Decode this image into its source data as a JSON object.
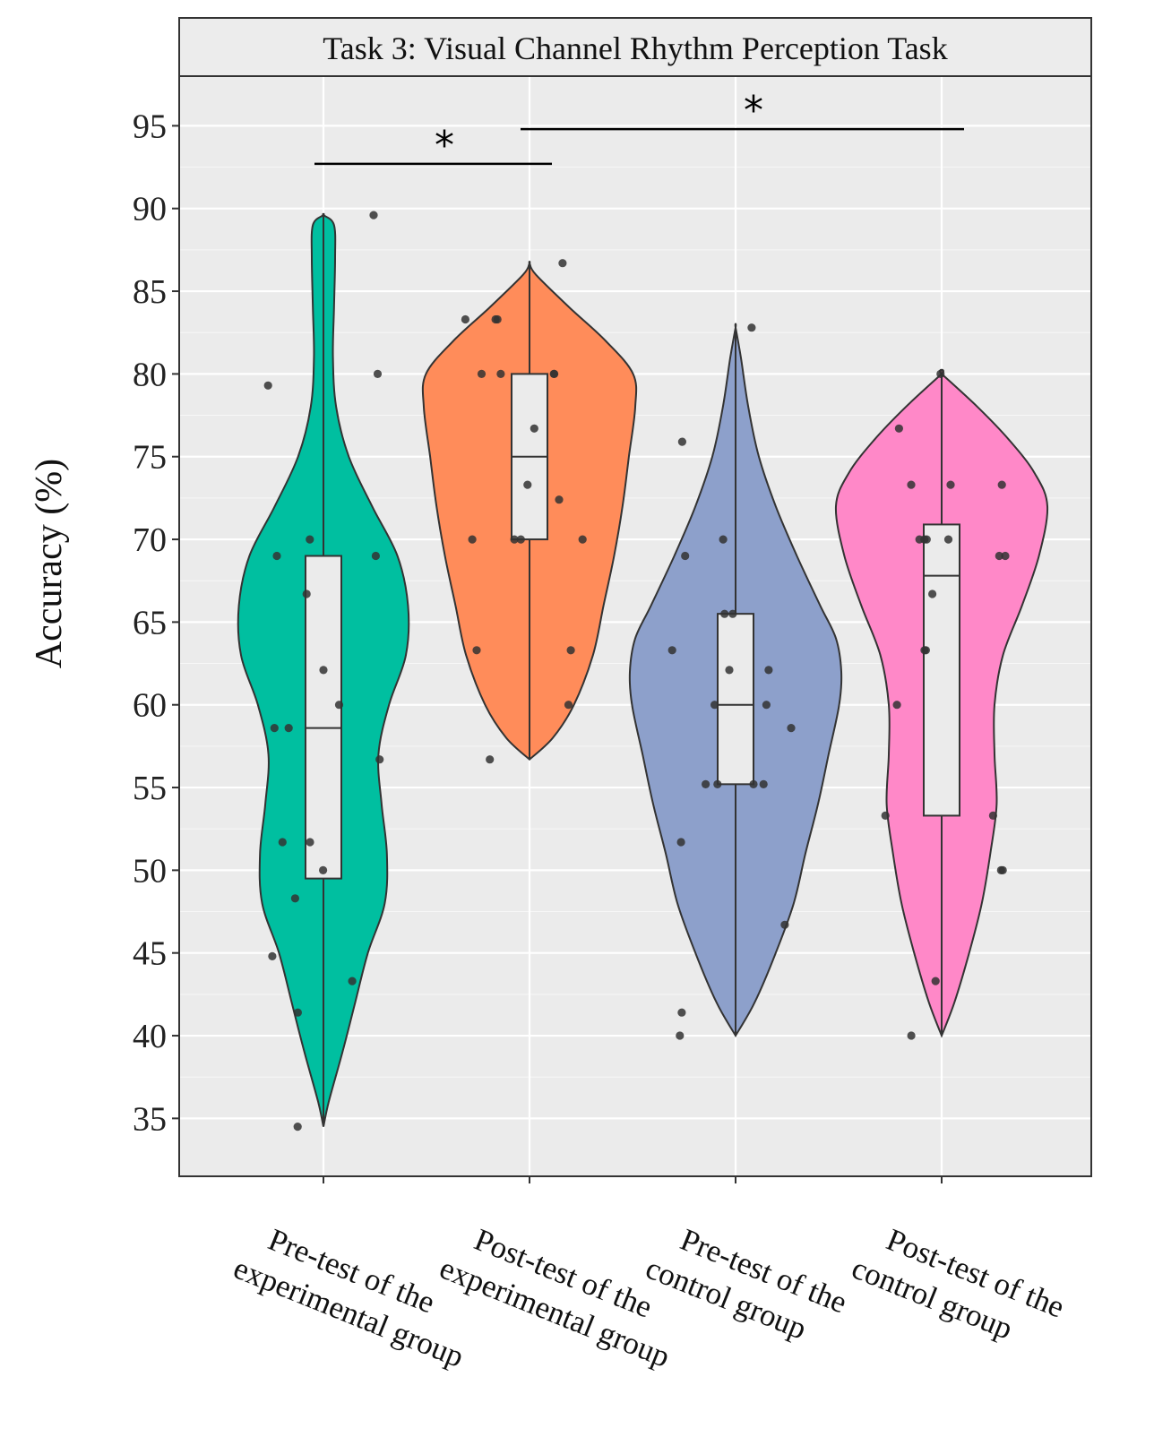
{
  "chart_data": {
    "type": "violin",
    "title": "Task 3: Visual Channel Rhythm Perception Task",
    "ylabel": "Accuracy (%)",
    "xlabel": "",
    "ylim": [
      31.5,
      98
    ],
    "yticks": [
      35,
      40,
      45,
      50,
      55,
      60,
      65,
      70,
      75,
      80,
      85,
      90,
      95
    ],
    "groups": [
      {
        "name": "Pre-test of the experimental group",
        "label_lines": [
          "Pre-test of the",
          "experimental group"
        ],
        "color": "#00BFA0",
        "box": {
          "q1": 49.5,
          "median": 58.6,
          "q3": 69.0,
          "min": 34.5,
          "max": 89.6
        },
        "density_profile": [
          [
            34.5,
            0
          ],
          [
            36,
            0.05
          ],
          [
            39,
            0.18
          ],
          [
            42,
            0.3
          ],
          [
            45,
            0.42
          ],
          [
            48,
            0.58
          ],
          [
            51,
            0.6
          ],
          [
            54,
            0.55
          ],
          [
            57,
            0.52
          ],
          [
            60,
            0.62
          ],
          [
            63,
            0.78
          ],
          [
            66,
            0.8
          ],
          [
            69,
            0.7
          ],
          [
            72,
            0.46
          ],
          [
            75,
            0.24
          ],
          [
            78,
            0.12
          ],
          [
            81,
            0.09
          ],
          [
            84,
            0.1
          ],
          [
            87,
            0.11
          ],
          [
            89,
            0.1
          ],
          [
            89.6,
            0
          ]
        ],
        "points": [
          89.6,
          80.0,
          79.3,
          70.0,
          69.0,
          69.0,
          66.7,
          62.1,
          60.0,
          58.6,
          58.6,
          56.7,
          51.7,
          51.7,
          50.0,
          48.3,
          44.8,
          43.3,
          41.4,
          34.5
        ]
      },
      {
        "name": "Post-test of the experimental group",
        "label_lines": [
          "Post-test of the",
          "experimental group"
        ],
        "color": "#FF8C5A",
        "box": {
          "q1": 70.0,
          "median": 75.0,
          "q3": 80.0,
          "min": 56.7,
          "max": 86.7
        },
        "density_profile": [
          [
            56.7,
            0
          ],
          [
            58,
            0.22
          ],
          [
            60,
            0.42
          ],
          [
            63,
            0.6
          ],
          [
            66,
            0.7
          ],
          [
            69,
            0.8
          ],
          [
            72,
            0.88
          ],
          [
            75,
            0.94
          ],
          [
            78,
            1.0
          ],
          [
            80,
            0.98
          ],
          [
            82,
            0.72
          ],
          [
            84,
            0.38
          ],
          [
            86,
            0.06
          ],
          [
            86.7,
            0
          ]
        ],
        "points": [
          86.7,
          83.3,
          83.3,
          83.3,
          80.0,
          80.0,
          80.0,
          80.0,
          76.7,
          73.3,
          72.4,
          70.0,
          70.0,
          70.0,
          70.0,
          63.3,
          63.3,
          60.0,
          56.7
        ]
      },
      {
        "name": "Pre-test of the control group",
        "label_lines": [
          "Pre-test of the",
          "control group"
        ],
        "color": "#8DA0CB",
        "box": {
          "q1": 55.2,
          "median": 60.0,
          "q3": 65.5,
          "min": 40.0,
          "max": 82.8
        },
        "density_profile": [
          [
            40,
            0
          ],
          [
            42,
            0.18
          ],
          [
            45,
            0.38
          ],
          [
            48,
            0.55
          ],
          [
            51,
            0.66
          ],
          [
            54,
            0.78
          ],
          [
            57,
            0.88
          ],
          [
            60,
            0.98
          ],
          [
            62,
            1.0
          ],
          [
            64,
            0.95
          ],
          [
            66,
            0.8
          ],
          [
            69,
            0.58
          ],
          [
            72,
            0.38
          ],
          [
            75,
            0.22
          ],
          [
            78,
            0.12
          ],
          [
            81,
            0.05
          ],
          [
            82.8,
            0
          ]
        ],
        "points": [
          82.8,
          75.9,
          70.0,
          69.0,
          65.5,
          65.5,
          63.3,
          62.1,
          62.1,
          60.0,
          60.0,
          58.6,
          55.2,
          55.2,
          55.2,
          55.2,
          51.7,
          46.7,
          41.4,
          40.0
        ]
      },
      {
        "name": "Post-test of the control group",
        "label_lines": [
          "Post-test of the",
          "control group"
        ],
        "color": "#FF88C8",
        "box": {
          "q1": 53.3,
          "median": 67.8,
          "q3": 70.9,
          "min": 40.0,
          "max": 80.0
        },
        "density_profile": [
          [
            40,
            0
          ],
          [
            42,
            0.12
          ],
          [
            45,
            0.26
          ],
          [
            48,
            0.38
          ],
          [
            51,
            0.46
          ],
          [
            54,
            0.52
          ],
          [
            57,
            0.5
          ],
          [
            60,
            0.5
          ],
          [
            63,
            0.58
          ],
          [
            66,
            0.76
          ],
          [
            69,
            0.92
          ],
          [
            72,
            1.0
          ],
          [
            74,
            0.88
          ],
          [
            76,
            0.64
          ],
          [
            78,
            0.34
          ],
          [
            80,
            0
          ]
        ],
        "points": [
          80.0,
          76.7,
          73.3,
          73.3,
          73.3,
          70.0,
          70.0,
          70.0,
          70.0,
          69.0,
          69.0,
          66.7,
          63.3,
          63.3,
          60.0,
          53.3,
          53.3,
          50.0,
          50.0,
          43.3,
          40.0
        ]
      }
    ],
    "significance": [
      {
        "from": 0,
        "to": 1,
        "y": 92.7,
        "label": "*"
      },
      {
        "from": 1,
        "to": 3,
        "y": 94.8,
        "label": "*"
      }
    ]
  }
}
